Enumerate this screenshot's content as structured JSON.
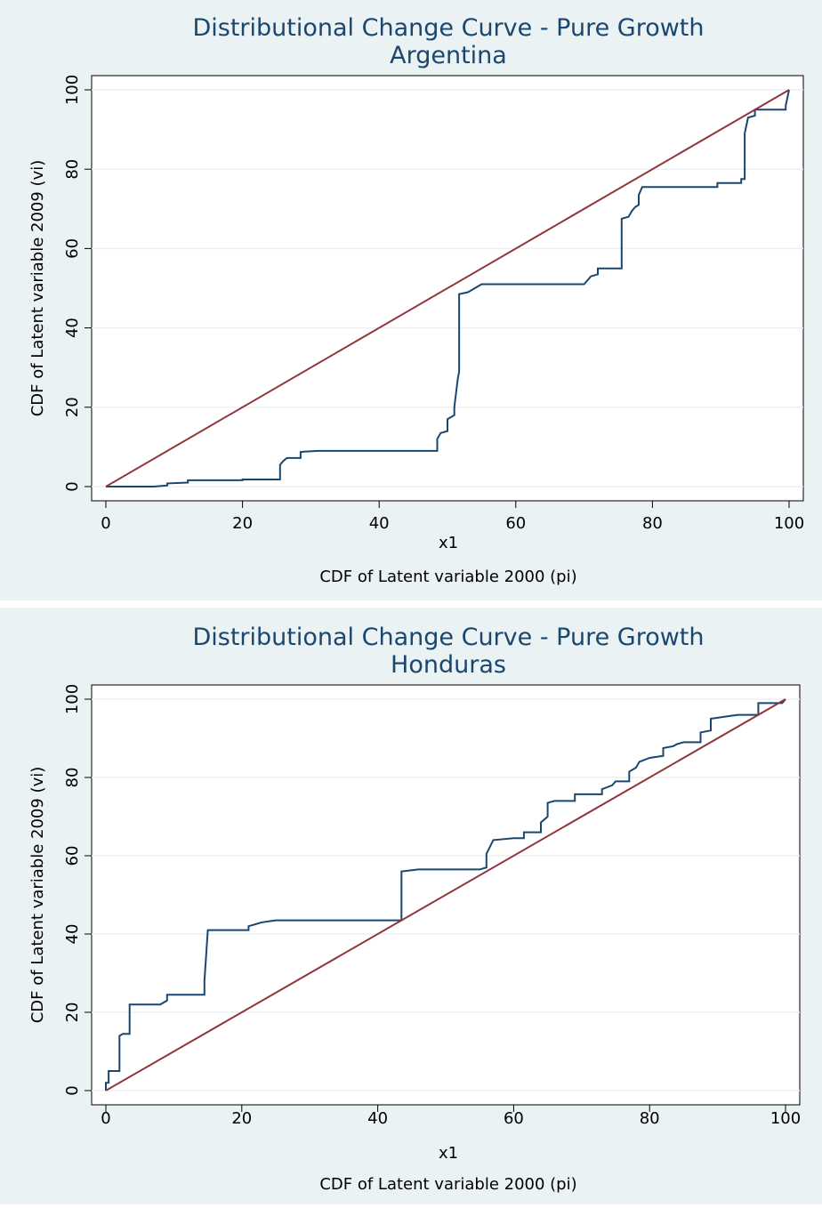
{
  "chart_data": [
    {
      "type": "line",
      "title": "Distributional Change Curve - Pure Growth",
      "subtitle": "Argentina",
      "y_label": "CDF of Latent variable 2009 (vi)",
      "x_label": "x1",
      "x_title": "CDF of Latent variable 2000 (pi)",
      "xlim": [
        0,
        100
      ],
      "ylim": [
        0,
        100
      ],
      "xticks": [
        0,
        20,
        40,
        60,
        80,
        100
      ],
      "yticks": [
        0,
        20,
        40,
        60,
        80,
        100
      ],
      "grid": true,
      "series": [
        {
          "color": "#1a476f",
          "x": [
            0,
            7,
            9,
            9,
            12,
            12,
            20,
            20,
            25.5,
            25.5,
            26,
            26.5,
            28.5,
            28.5,
            29,
            31,
            48.5,
            48.5,
            49,
            50,
            50,
            51,
            51,
            51.5,
            51.7,
            51.7,
            53,
            54,
            55,
            70,
            70.5,
            71,
            72,
            72,
            75.5,
            75.5,
            76.5,
            77,
            77.5,
            78,
            78,
            78.5,
            89.5,
            89.5,
            93,
            93,
            93.5,
            93.5,
            94,
            95,
            95,
            99.5,
            99.5,
            100
          ],
          "values": [
            0,
            0,
            0.3,
            0.8,
            1,
            1.6,
            1.6,
            1.8,
            1.8,
            5.5,
            6.5,
            7.2,
            7.2,
            8.7,
            8.8,
            9,
            9,
            12,
            13.5,
            14,
            17,
            18,
            20,
            27,
            29,
            48.5,
            49,
            50,
            51,
            51,
            52,
            53,
            53.5,
            55,
            55,
            67.5,
            68,
            69.5,
            70.5,
            71,
            73.5,
            75.5,
            75.5,
            76.5,
            76.5,
            77.5,
            77.5,
            89,
            93,
            93.5,
            95,
            95,
            96,
            100
          ]
        },
        {
          "color": "#90353b",
          "x": [
            0,
            100
          ],
          "values": [
            0,
            100
          ]
        }
      ]
    },
    {
      "type": "line",
      "title": "Distributional Change Curve - Pure Growth",
      "subtitle": "Honduras",
      "y_label": "CDF of Latent variable 2009 (vi)",
      "x_label": "x1",
      "x_title": "CDF of Latent variable 2000 (pi)",
      "xlim": [
        0,
        100
      ],
      "ylim": [
        0,
        100
      ],
      "xticks": [
        0,
        20,
        40,
        60,
        80,
        100
      ],
      "yticks": [
        0,
        20,
        40,
        60,
        80,
        100
      ],
      "grid": true,
      "series": [
        {
          "color": "#1a476f",
          "x": [
            0,
            0,
            0.4,
            0.4,
            2,
            2,
            2.5,
            3.5,
            3.5,
            8,
            9,
            9,
            14.5,
            14.5,
            15,
            21,
            21,
            22,
            23,
            25,
            43.5,
            43.5,
            46,
            55,
            56,
            56,
            57,
            60,
            61.5,
            61.5,
            64,
            64,
            65,
            65,
            66,
            69,
            69,
            73,
            73,
            74.5,
            75,
            77,
            77,
            78,
            78.5,
            80,
            82,
            82,
            83.5,
            84,
            85,
            87.5,
            87.5,
            89,
            89,
            91,
            93,
            96,
            96,
            99.5,
            100
          ],
          "values": [
            0,
            2,
            2,
            5,
            5,
            14,
            14.5,
            14.5,
            22,
            22,
            23,
            24.5,
            24.5,
            28,
            41,
            41,
            42,
            42.5,
            43,
            43.5,
            43.5,
            56,
            56.5,
            56.5,
            57,
            60.5,
            64,
            64.5,
            64.5,
            66,
            66,
            68.5,
            70,
            73.5,
            74,
            74,
            75.7,
            75.7,
            77,
            78,
            79,
            79,
            81.5,
            82.5,
            84,
            85,
            85.5,
            87.5,
            88,
            88.5,
            89,
            89,
            91.5,
            92,
            95,
            95.5,
            96,
            96,
            99,
            99,
            100
          ]
        },
        {
          "color": "#90353b",
          "x": [
            0,
            100
          ],
          "values": [
            0,
            100
          ]
        }
      ]
    }
  ]
}
